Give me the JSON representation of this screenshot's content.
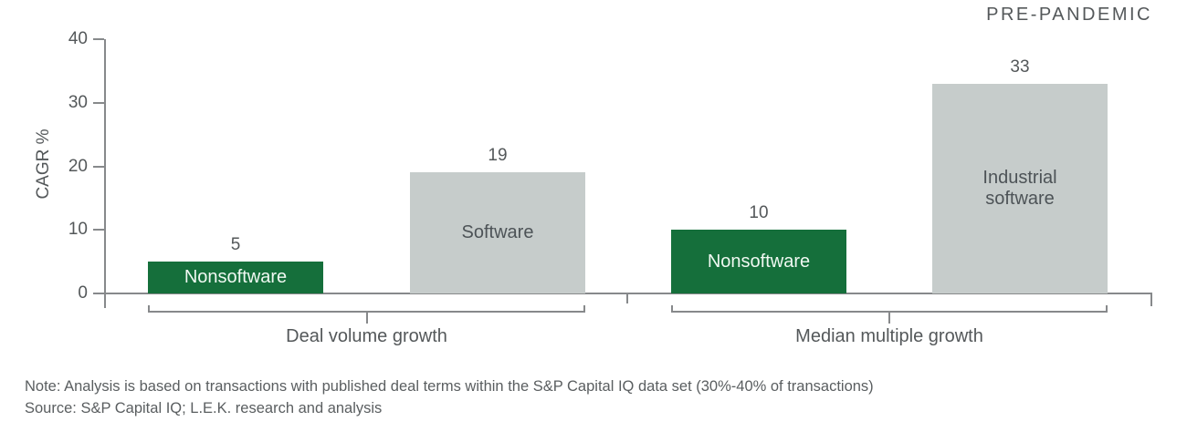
{
  "header": {
    "annotation": "PRE-PANDEMIC"
  },
  "chart_data": {
    "type": "bar",
    "title": "",
    "ylabel": "CAGR %",
    "xlabel": "",
    "ylim": [
      0,
      40
    ],
    "y_ticks": [
      0,
      10,
      20,
      30,
      40
    ],
    "grid": false,
    "legend": false,
    "annotation": "PRE-PANDEMIC",
    "groups": [
      {
        "label": "Deal volume growth",
        "bars": [
          {
            "name": "Nonsoftware",
            "value": 5,
            "color": "#156f3b",
            "text_color": "#f0f8f2"
          },
          {
            "name": "Software",
            "value": 19,
            "color": "#c6cccb",
            "text_color": "#4d5357"
          }
        ]
      },
      {
        "label": "Median multiple growth",
        "bars": [
          {
            "name": "Nonsoftware",
            "value": 10,
            "color": "#156f3b",
            "text_color": "#f0f8f2"
          },
          {
            "name": "Industrial software",
            "value": 33,
            "color": "#c6cccb",
            "text_color": "#4d5357"
          }
        ]
      }
    ]
  },
  "footer": {
    "note": "Note: Analysis is based on transactions with published deal terms within the S&P Capital IQ data set (30%-40% of transactions)",
    "source": "Source: S&P Capital IQ; L.E.K. research and analysis"
  },
  "colors": {
    "green_bar": "#156f3b",
    "gray_bar": "#c6cccb",
    "axis_line": "#87898b",
    "text": "#54585a"
  }
}
